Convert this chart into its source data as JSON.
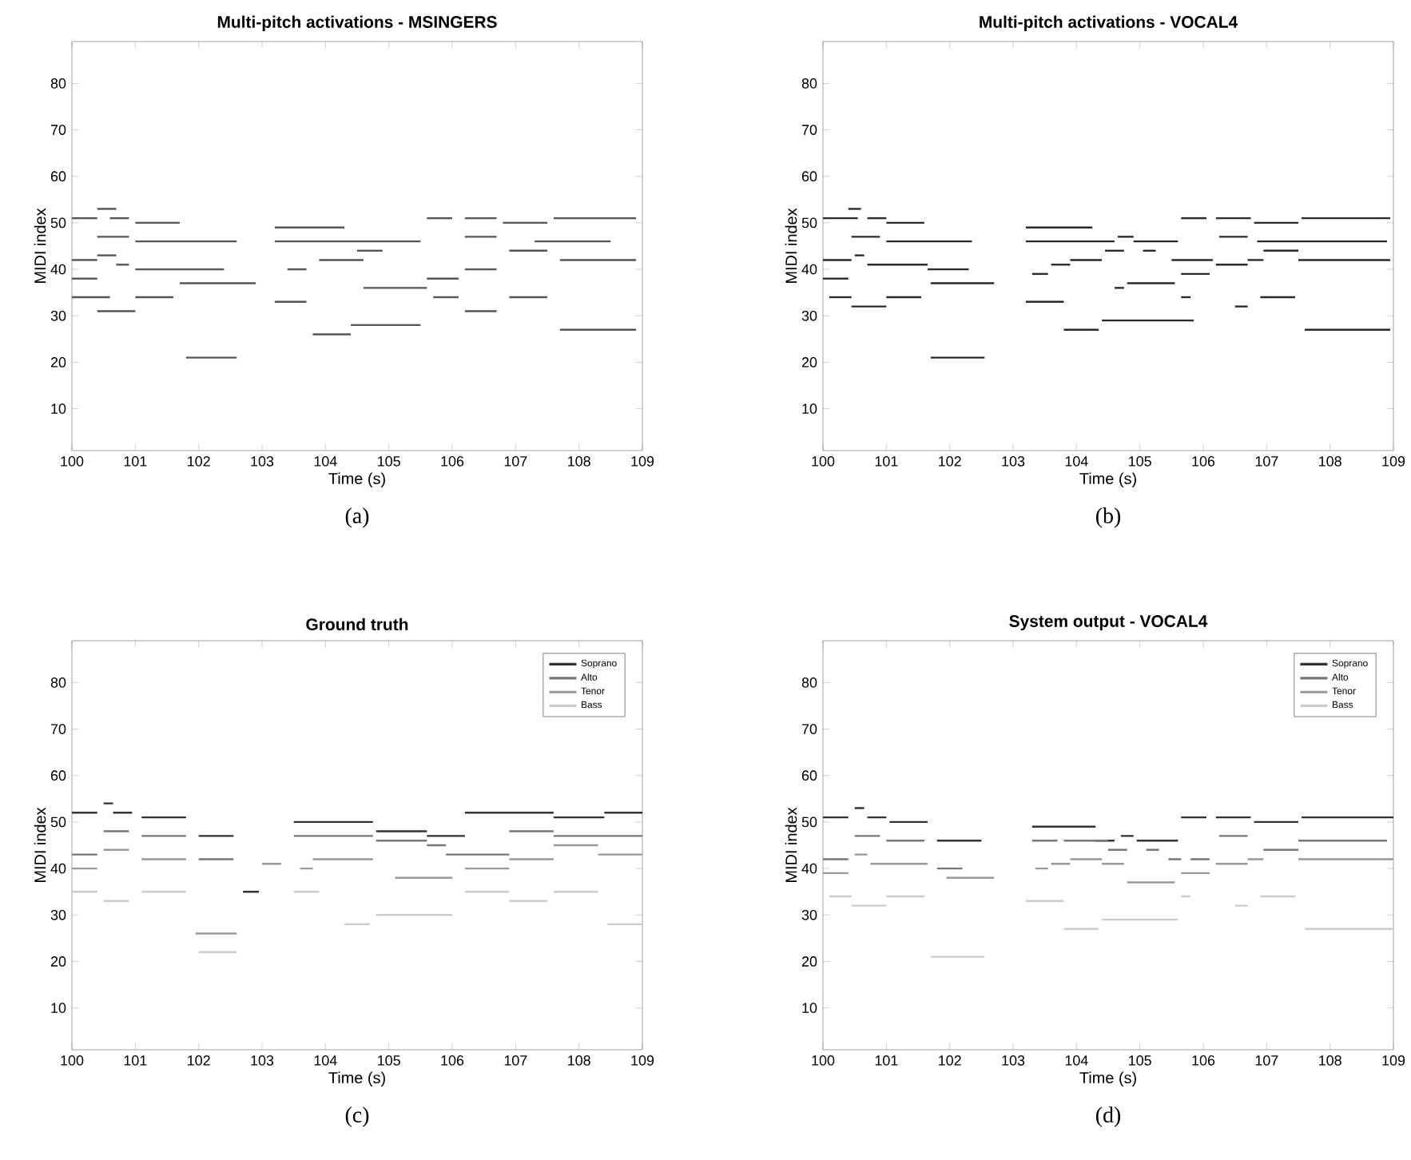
{
  "chart_data": [
    {
      "type": "line",
      "title": "Multi-pitch activations - MSINGERS",
      "xlabel": "Time (s)",
      "ylabel": "MIDI index",
      "annotations": [
        "(a)"
      ],
      "xlim": [
        100,
        109
      ],
      "ylim": [
        1,
        89
      ],
      "xticks": [
        100,
        101,
        102,
        103,
        104,
        105,
        106,
        107,
        108,
        109
      ],
      "yticks": [
        10,
        20,
        30,
        40,
        50,
        60,
        70,
        80
      ],
      "series": [
        {
          "color": "#555555",
          "x": [
            100.0,
            100.4
          ],
          "values": [
            51,
            51
          ]
        },
        {
          "color": "#555555",
          "x": [
            100.4,
            100.7
          ],
          "values": [
            53,
            53
          ]
        },
        {
          "color": "#555555",
          "x": [
            100.6,
            100.9
          ],
          "values": [
            51,
            51
          ]
        },
        {
          "color": "#555555",
          "x": [
            101.0,
            101.7
          ],
          "values": [
            50,
            50
          ]
        },
        {
          "color": "#555555",
          "x": [
            100.4,
            100.9
          ],
          "values": [
            47,
            47
          ]
        },
        {
          "color": "#555555",
          "x": [
            101.0,
            102.6
          ],
          "values": [
            46,
            46
          ]
        },
        {
          "color": "#555555",
          "x": [
            100.0,
            100.4
          ],
          "values": [
            42,
            42
          ]
        },
        {
          "color": "#555555",
          "x": [
            100.4,
            100.7
          ],
          "values": [
            43,
            43
          ]
        },
        {
          "color": "#555555",
          "x": [
            100.7,
            100.9
          ],
          "values": [
            41,
            41
          ]
        },
        {
          "color": "#555555",
          "x": [
            101.0,
            102.4
          ],
          "values": [
            40,
            40
          ]
        },
        {
          "color": "#555555",
          "x": [
            100.0,
            100.4
          ],
          "values": [
            38,
            38
          ]
        },
        {
          "color": "#555555",
          "x": [
            101.7,
            102.9
          ],
          "values": [
            37,
            37
          ]
        },
        {
          "color": "#555555",
          "x": [
            100.0,
            100.6
          ],
          "values": [
            34,
            34
          ]
        },
        {
          "color": "#555555",
          "x": [
            100.4,
            101.0
          ],
          "values": [
            31,
            31
          ]
        },
        {
          "color": "#555555",
          "x": [
            101.0,
            101.6
          ],
          "values": [
            34,
            34
          ]
        },
        {
          "color": "#555555",
          "x": [
            101.8,
            102.6
          ],
          "values": [
            21,
            21
          ]
        },
        {
          "color": "#555555",
          "x": [
            103.2,
            104.3
          ],
          "values": [
            49,
            49
          ]
        },
        {
          "color": "#555555",
          "x": [
            103.2,
            105.5
          ],
          "values": [
            46,
            46
          ]
        },
        {
          "color": "#555555",
          "x": [
            103.4,
            103.7
          ],
          "values": [
            40,
            40
          ]
        },
        {
          "color": "#555555",
          "x": [
            103.9,
            104.6
          ],
          "values": [
            42,
            42
          ]
        },
        {
          "color": "#555555",
          "x": [
            103.2,
            103.7
          ],
          "values": [
            33,
            33
          ]
        },
        {
          "color": "#555555",
          "x": [
            103.8,
            104.4
          ],
          "values": [
            26,
            26
          ]
        },
        {
          "color": "#555555",
          "x": [
            104.4,
            105.5
          ],
          "values": [
            28,
            28
          ]
        },
        {
          "color": "#555555",
          "x": [
            104.6,
            105.6
          ],
          "values": [
            36,
            36
          ]
        },
        {
          "color": "#555555",
          "x": [
            104.5,
            104.9
          ],
          "values": [
            44,
            44
          ]
        },
        {
          "color": "#555555",
          "x": [
            105.6,
            106.0
          ],
          "values": [
            51,
            51
          ]
        },
        {
          "color": "#555555",
          "x": [
            105.6,
            106.1
          ],
          "values": [
            38,
            38
          ]
        },
        {
          "color": "#555555",
          "x": [
            105.7,
            106.1
          ],
          "values": [
            34,
            34
          ]
        },
        {
          "color": "#555555",
          "x": [
            106.2,
            106.7
          ],
          "values": [
            51,
            51
          ]
        },
        {
          "color": "#555555",
          "x": [
            106.2,
            106.7
          ],
          "values": [
            47,
            47
          ]
        },
        {
          "color": "#555555",
          "x": [
            106.2,
            106.7
          ],
          "values": [
            40,
            40
          ]
        },
        {
          "color": "#555555",
          "x": [
            106.2,
            106.7
          ],
          "values": [
            31,
            31
          ]
        },
        {
          "color": "#555555",
          "x": [
            106.8,
            107.5
          ],
          "values": [
            50,
            50
          ]
        },
        {
          "color": "#555555",
          "x": [
            106.9,
            107.5
          ],
          "values": [
            44,
            44
          ]
        },
        {
          "color": "#555555",
          "x": [
            106.9,
            107.5
          ],
          "values": [
            34,
            34
          ]
        },
        {
          "color": "#555555",
          "x": [
            107.6,
            108.9
          ],
          "values": [
            51,
            51
          ]
        },
        {
          "color": "#555555",
          "x": [
            107.3,
            108.5
          ],
          "values": [
            46,
            46
          ]
        },
        {
          "color": "#555555",
          "x": [
            107.7,
            108.9
          ],
          "values": [
            42,
            42
          ]
        },
        {
          "color": "#555555",
          "x": [
            107.7,
            108.9
          ],
          "values": [
            27,
            27
          ]
        }
      ]
    },
    {
      "type": "line",
      "title": "Multi-pitch activations - VOCAL4",
      "xlabel": "Time (s)",
      "ylabel": "MIDI index",
      "annotations": [
        "(b)"
      ],
      "xlim": [
        100,
        109
      ],
      "ylim": [
        1,
        89
      ],
      "xticks": [
        100,
        101,
        102,
        103,
        104,
        105,
        106,
        107,
        108,
        109
      ],
      "yticks": [
        10,
        20,
        30,
        40,
        50,
        60,
        70,
        80
      ],
      "series": [
        {
          "color": "#2a2a2a",
          "x": [
            100.0,
            100.55
          ],
          "values": [
            51,
            51
          ]
        },
        {
          "color": "#2a2a2a",
          "x": [
            100.4,
            100.6
          ],
          "values": [
            53,
            53
          ]
        },
        {
          "color": "#2a2a2a",
          "x": [
            100.7,
            101.0
          ],
          "values": [
            51,
            51
          ]
        },
        {
          "color": "#2a2a2a",
          "x": [
            101.0,
            101.6
          ],
          "values": [
            50,
            50
          ]
        },
        {
          "color": "#2a2a2a",
          "x": [
            100.45,
            100.9
          ],
          "values": [
            47,
            47
          ]
        },
        {
          "color": "#2a2a2a",
          "x": [
            101.0,
            102.35
          ],
          "values": [
            46,
            46
          ]
        },
        {
          "color": "#2a2a2a",
          "x": [
            100.0,
            100.45
          ],
          "values": [
            42,
            42
          ]
        },
        {
          "color": "#2a2a2a",
          "x": [
            100.5,
            100.65
          ],
          "values": [
            43,
            43
          ]
        },
        {
          "color": "#2a2a2a",
          "x": [
            100.7,
            101.65
          ],
          "values": [
            41,
            41
          ]
        },
        {
          "color": "#2a2a2a",
          "x": [
            101.65,
            102.3
          ],
          "values": [
            40,
            40
          ]
        },
        {
          "color": "#2a2a2a",
          "x": [
            100.0,
            100.4
          ],
          "values": [
            38,
            38
          ]
        },
        {
          "color": "#2a2a2a",
          "x": [
            101.7,
            102.7
          ],
          "values": [
            37,
            37
          ]
        },
        {
          "color": "#2a2a2a",
          "x": [
            100.1,
            100.45
          ],
          "values": [
            34,
            34
          ]
        },
        {
          "color": "#2a2a2a",
          "x": [
            100.45,
            101.0
          ],
          "values": [
            32,
            32
          ]
        },
        {
          "color": "#2a2a2a",
          "x": [
            101.0,
            101.55
          ],
          "values": [
            34,
            34
          ]
        },
        {
          "color": "#2a2a2a",
          "x": [
            101.7,
            102.55
          ],
          "values": [
            21,
            21
          ]
        },
        {
          "color": "#2a2a2a",
          "x": [
            103.2,
            104.6
          ],
          "values": [
            46,
            46
          ]
        },
        {
          "color": "#2a2a2a",
          "x": [
            103.3,
            103.55
          ],
          "values": [
            39,
            39
          ]
        },
        {
          "color": "#2a2a2a",
          "x": [
            103.6,
            103.9
          ],
          "values": [
            41,
            41
          ]
        },
        {
          "color": "#2a2a2a",
          "x": [
            103.9,
            104.4
          ],
          "values": [
            42,
            42
          ]
        },
        {
          "color": "#2a2a2a",
          "x": [
            103.2,
            103.8
          ],
          "values": [
            33,
            33
          ]
        },
        {
          "color": "#2a2a2a",
          "x": [
            103.8,
            104.35
          ],
          "values": [
            27,
            27
          ]
        },
        {
          "color": "#2a2a2a",
          "x": [
            104.4,
            105.85
          ],
          "values": [
            29,
            29
          ]
        },
        {
          "color": "#2a2a2a",
          "x": [
            104.45,
            104.75
          ],
          "values": [
            44,
            44
          ]
        },
        {
          "color": "#2a2a2a",
          "x": [
            104.65,
            104.9
          ],
          "values": [
            47,
            47
          ]
        },
        {
          "color": "#2a2a2a",
          "x": [
            104.9,
            105.6
          ],
          "values": [
            46,
            46
          ]
        },
        {
          "color": "#2a2a2a",
          "x": [
            105.05,
            105.25
          ],
          "values": [
            44,
            44
          ]
        },
        {
          "color": "#2a2a2a",
          "x": [
            104.6,
            104.75
          ],
          "values": [
            36,
            36
          ]
        },
        {
          "color": "#2a2a2a",
          "x": [
            104.8,
            105.55
          ],
          "values": [
            37,
            37
          ]
        },
        {
          "color": "#2a2a2a",
          "x": [
            105.5,
            106.15
          ],
          "values": [
            42,
            42
          ]
        },
        {
          "color": "#2a2a2a",
          "x": [
            105.65,
            106.1
          ],
          "values": [
            39,
            39
          ]
        },
        {
          "color": "#2a2a2a",
          "x": [
            105.65,
            105.8
          ],
          "values": [
            34,
            34
          ]
        },
        {
          "color": "#2a2a2a",
          "x": [
            106.25,
            106.7
          ],
          "values": [
            47,
            47
          ]
        },
        {
          "color": "#2a2a2a",
          "x": [
            106.2,
            106.7
          ],
          "values": [
            41,
            41
          ]
        },
        {
          "color": "#2a2a2a",
          "x": [
            106.7,
            106.95
          ],
          "values": [
            42,
            42
          ]
        },
        {
          "color": "#2a2a2a",
          "x": [
            106.5,
            106.7
          ],
          "values": [
            32,
            32
          ]
        },
        {
          "color": "#2a2a2a",
          "x": [
            106.8,
            107.5
          ],
          "values": [
            50,
            50
          ]
        },
        {
          "color": "#2a2a2a",
          "x": [
            106.95,
            107.5
          ],
          "values": [
            44,
            44
          ]
        },
        {
          "color": "#2a2a2a",
          "x": [
            106.9,
            107.45
          ],
          "values": [
            34,
            34
          ]
        },
        {
          "color": "#2a2a2a",
          "x": [
            103.2,
            104.25
          ],
          "values": [
            49,
            49
          ]
        },
        {
          "color": "#2a2a2a",
          "x": [
            105.65,
            106.05
          ],
          "values": [
            51,
            51
          ]
        },
        {
          "color": "#2a2a2a",
          "x": [
            106.2,
            106.75
          ],
          "values": [
            51,
            51
          ]
        },
        {
          "color": "#2a2a2a",
          "x": [
            107.55,
            108.95
          ],
          "values": [
            51,
            51
          ]
        },
        {
          "color": "#2a2a2a",
          "x": [
            106.85,
            108.9
          ],
          "values": [
            46,
            46
          ]
        },
        {
          "color": "#2a2a2a",
          "x": [
            107.5,
            108.95
          ],
          "values": [
            42,
            42
          ]
        },
        {
          "color": "#2a2a2a",
          "x": [
            107.6,
            108.95
          ],
          "values": [
            27,
            27
          ]
        }
      ]
    },
    {
      "type": "line",
      "title": "Ground truth",
      "xlabel": "Time (s)",
      "ylabel": "MIDI index",
      "annotations": [
        "(c)"
      ],
      "xlim": [
        100,
        109
      ],
      "ylim": [
        1,
        89
      ],
      "xticks": [
        100,
        101,
        102,
        103,
        104,
        105,
        106,
        107,
        108,
        109
      ],
      "yticks": [
        10,
        20,
        30,
        40,
        50,
        60,
        70,
        80
      ],
      "legend": "top right",
      "series": [
        {
          "name": "Soprano",
          "color": "#333333",
          "x": [
            100.0,
            100.4,
            null,
            100.5,
            100.65,
            null,
            100.65,
            100.95,
            null,
            101.1,
            101.8,
            null,
            102.0,
            102.55,
            null,
            102.7,
            102.95,
            null,
            103.5,
            104.75,
            null,
            104.8,
            105.6,
            null,
            105.6,
            106.2,
            null,
            106.2,
            107.6,
            null,
            107.6,
            108.4,
            null,
            108.4,
            109.0
          ],
          "values": [
            52,
            52,
            null,
            54,
            54,
            null,
            52,
            52,
            null,
            51,
            51,
            null,
            47,
            47,
            null,
            35,
            35,
            null,
            50,
            50,
            null,
            48,
            48,
            null,
            47,
            47,
            null,
            52,
            52,
            null,
            51,
            51,
            null,
            52,
            52
          ]
        },
        {
          "name": "Alto",
          "color": "#777777",
          "x": [
            100.0,
            100.4,
            null,
            100.5,
            100.9,
            null,
            101.1,
            101.8,
            null,
            102.0,
            102.55,
            null,
            103.5,
            104.75,
            null,
            104.8,
            105.6,
            null,
            105.6,
            105.9,
            null,
            105.9,
            106.9,
            null,
            106.9,
            107.6,
            null,
            107.6,
            109.0
          ],
          "values": [
            43,
            43,
            null,
            48,
            48,
            null,
            47,
            47,
            null,
            42,
            42,
            null,
            47,
            47,
            null,
            46,
            46,
            null,
            45,
            45,
            null,
            43,
            43,
            null,
            48,
            48,
            null,
            47,
            47
          ]
        },
        {
          "name": "Tenor",
          "color": "#999999",
          "x": [
            100.0,
            100.4,
            null,
            100.5,
            100.9,
            null,
            101.1,
            101.8,
            null,
            101.95,
            102.6,
            null,
            103.0,
            103.3,
            null,
            103.6,
            103.8,
            null,
            103.8,
            104.75,
            null,
            105.1,
            106.0,
            null,
            106.2,
            106.9,
            null,
            106.9,
            107.6,
            null,
            107.6,
            108.3,
            null,
            108.3,
            109.0
          ],
          "values": [
            40,
            40,
            null,
            44,
            44,
            null,
            42,
            42,
            null,
            26,
            26,
            null,
            41,
            41,
            null,
            40,
            40,
            null,
            42,
            42,
            null,
            38,
            38,
            null,
            40,
            40,
            null,
            42,
            42,
            null,
            45,
            45,
            null,
            43,
            43
          ]
        },
        {
          "name": "Bass",
          "color": "#cccccc",
          "x": [
            100.0,
            100.4,
            null,
            100.5,
            100.9,
            null,
            101.1,
            101.8,
            null,
            102.0,
            102.6,
            null,
            103.5,
            103.9,
            null,
            104.3,
            104.7,
            null,
            104.8,
            106.0,
            null,
            106.2,
            106.9,
            null,
            106.9,
            107.5,
            null,
            107.6,
            108.3,
            null,
            108.45,
            109.0
          ],
          "values": [
            35,
            35,
            null,
            33,
            33,
            null,
            35,
            35,
            null,
            22,
            22,
            null,
            35,
            35,
            null,
            28,
            28,
            null,
            30,
            30,
            null,
            35,
            35,
            null,
            33,
            33,
            null,
            35,
            35,
            null,
            28,
            28
          ]
        }
      ]
    },
    {
      "type": "line",
      "title": "System output - VOCAL4",
      "xlabel": "Time (s)",
      "ylabel": "MIDI index",
      "annotations": [
        "(d)"
      ],
      "xlim": [
        100,
        109
      ],
      "ylim": [
        1,
        89
      ],
      "xticks": [
        100,
        101,
        102,
        103,
        104,
        105,
        106,
        107,
        108,
        109
      ],
      "yticks": [
        10,
        20,
        30,
        40,
        50,
        60,
        70,
        80
      ],
      "legend": "top right",
      "series": [
        {
          "name": "Soprano",
          "color": "#333333",
          "x": [
            100.0,
            100.4,
            null,
            100.5,
            100.65,
            null,
            100.7,
            101.0,
            null,
            101.05,
            101.65,
            null,
            101.8,
            102.5,
            null,
            103.3,
            104.3,
            null,
            104.3,
            104.6,
            null,
            104.7,
            104.9,
            null,
            104.95,
            105.6,
            null,
            105.65,
            106.05,
            null,
            106.2,
            106.75,
            null,
            106.8,
            107.5,
            null,
            107.55,
            109.0
          ],
          "values": [
            51,
            51,
            null,
            53,
            53,
            null,
            51,
            51,
            null,
            50,
            50,
            null,
            46,
            46,
            null,
            49,
            49,
            null,
            46,
            46,
            null,
            47,
            47,
            null,
            46,
            46,
            null,
            51,
            51,
            null,
            51,
            51,
            null,
            50,
            50,
            null,
            51,
            51
          ]
        },
        {
          "name": "Alto",
          "color": "#777777",
          "x": [
            100.0,
            100.4,
            null,
            100.5,
            100.9,
            null,
            101.0,
            101.6,
            null,
            101.8,
            102.2,
            null,
            103.3,
            103.7,
            null,
            103.8,
            104.5,
            null,
            104.5,
            104.8,
            null,
            105.1,
            105.3,
            null,
            105.45,
            105.65,
            null,
            105.8,
            106.1,
            null,
            106.25,
            106.7,
            null,
            106.95,
            107.5,
            null,
            107.5,
            108.9
          ],
          "values": [
            42,
            42,
            null,
            47,
            47,
            null,
            46,
            46,
            null,
            40,
            40,
            null,
            46,
            46,
            null,
            46,
            46,
            null,
            44,
            44,
            null,
            44,
            44,
            null,
            42,
            42,
            null,
            42,
            42,
            null,
            47,
            47,
            null,
            44,
            44,
            null,
            46,
            46
          ]
        },
        {
          "name": "Tenor",
          "color": "#999999",
          "x": [
            100.0,
            100.4,
            null,
            100.5,
            100.7,
            null,
            100.75,
            101.65,
            null,
            101.95,
            102.7,
            null,
            103.35,
            103.55,
            null,
            103.6,
            103.9,
            null,
            103.9,
            104.4,
            null,
            104.4,
            104.75,
            null,
            104.8,
            105.55,
            null,
            105.65,
            106.1,
            null,
            106.2,
            106.7,
            null,
            106.7,
            106.95,
            null,
            107.5,
            109.0
          ],
          "values": [
            39,
            39,
            null,
            43,
            43,
            null,
            41,
            41,
            null,
            38,
            38,
            null,
            40,
            40,
            null,
            41,
            41,
            null,
            42,
            42,
            null,
            41,
            41,
            null,
            37,
            37,
            null,
            39,
            39,
            null,
            41,
            41,
            null,
            42,
            42,
            null,
            42,
            42
          ]
        },
        {
          "name": "Bass",
          "color": "#cccccc",
          "x": [
            100.1,
            100.45,
            null,
            100.45,
            101.0,
            null,
            101.0,
            101.6,
            null,
            101.7,
            102.55,
            null,
            103.2,
            103.8,
            null,
            103.8,
            104.35,
            null,
            104.4,
            105.6,
            null,
            105.65,
            105.8,
            null,
            106.5,
            106.7,
            null,
            106.9,
            107.45,
            null,
            107.6,
            109.0
          ],
          "values": [
            34,
            34,
            null,
            32,
            32,
            null,
            34,
            34,
            null,
            21,
            21,
            null,
            33,
            33,
            null,
            27,
            27,
            null,
            29,
            29,
            null,
            34,
            34,
            null,
            32,
            32,
            null,
            34,
            34,
            null,
            27,
            27
          ]
        }
      ]
    }
  ]
}
